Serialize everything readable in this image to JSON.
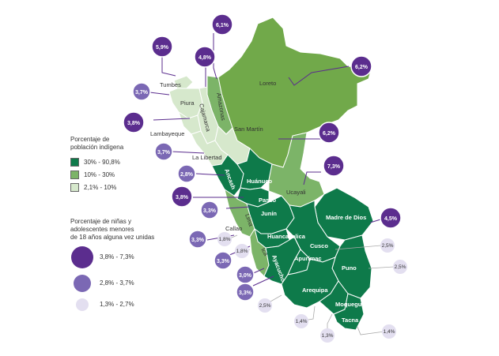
{
  "colors": {
    "high": "#0e7a4a",
    "mid": "#7cb468",
    "low": "#d6e8cc",
    "loreto": "#71a94a",
    "bubble_high": "#5b2d8e",
    "bubble_mid": "#7b68b4",
    "bubble_low": "#e3dff0",
    "bubble_border": "#ffffff"
  },
  "legend_indigenous": {
    "title_line1": "Porcentaje de",
    "title_line2": "población indígena",
    "items": [
      {
        "label": "30% - 90,8%",
        "color": "#0e7a4a"
      },
      {
        "label": "10% - 30%",
        "color": "#7cb468"
      },
      {
        "label": "2,1% - 10%",
        "color": "#d6e8cc"
      }
    ]
  },
  "legend_children": {
    "title_line1": "Porcentaje de niñas y",
    "title_line2": "adolescentes menores",
    "title_line3": "de 18 años alguna vez unidas",
    "items": [
      {
        "label": "3,8% - 7,3%",
        "class": "high"
      },
      {
        "label": "2,8% - 3,7%",
        "class": "mid"
      },
      {
        "label": "1,3% - 2,7%",
        "class": "low"
      }
    ]
  },
  "regions": {
    "tumbes": "Tumbes",
    "piura": "Piura",
    "lambayeque": "Lambayeque",
    "cajamarca": "Cajamarca",
    "amazonas": "Amazonas",
    "loreto": "Loreto",
    "san_martin": "San Martín",
    "la_libertad": "La Libertad",
    "ancash": "Ancash",
    "huanuco": "Huánuco",
    "ucayali": "Ucayali",
    "pasco": "Pasco",
    "junin": "Junín",
    "lima": "Lima",
    "callao": "Callao",
    "madre_de_dios": "Madre de Dios",
    "huancavelica": "Huancavelica",
    "cusco": "Cusco",
    "apurimac": "Apurímac",
    "ica": "Ica",
    "ayacucho": "Ayacucho",
    "puno": "Puno",
    "arequipa": "Arequipa",
    "moquegua": "Moquegua",
    "tacna": "Tacna"
  },
  "bubbles": {
    "tumbes": "5,9%",
    "amazonas": "6,1%",
    "cajamarca": "4,8%",
    "loreto": "6,2%",
    "piura": "3,7%",
    "lambayeque": "3,8%",
    "san_martin": "6,2%",
    "la_libertad": "3,7%",
    "ucayali": "7,3%",
    "ancash": "2,8%",
    "huanuco": "3,8%",
    "pasco": "3,3%",
    "madre_de_dios": "4,5%",
    "lima": "3,3%",
    "callao": "1,8%",
    "cusco": "2,5%",
    "junin": "1,8%",
    "huancavelica": "3,3%",
    "ica": "3,0%",
    "puno": "2,5%",
    "ayacucho": "3,3%",
    "apurimac": "2,5%",
    "arequipa": "1,4%",
    "moquegua": "1,3%",
    "tacna": "1,4%"
  }
}
